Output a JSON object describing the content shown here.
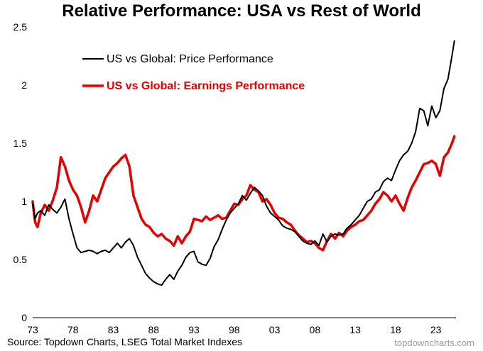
{
  "chart_data": {
    "type": "line",
    "title": "Relative Performance: USA vs Rest of World",
    "xlabel": "",
    "ylabel": "",
    "xlim": [
      1973,
      2025.5
    ],
    "ylim": [
      0,
      2.5
    ],
    "x_ticks": [
      1973,
      1978,
      1983,
      1988,
      1993,
      1998,
      2003,
      2008,
      2013,
      2018,
      2023
    ],
    "x_tick_labels": [
      "73",
      "78",
      "83",
      "88",
      "93",
      "98",
      "03",
      "08",
      "13",
      "18",
      "23"
    ],
    "y_ticks": [
      0,
      0.5,
      1,
      1.5,
      2,
      2.5
    ],
    "y_tick_labels": [
      "0",
      "0.5",
      "1",
      "1.5",
      "2",
      "2.5"
    ],
    "grid": false,
    "legend_position": "top-left",
    "series": [
      {
        "name": "US vs Global: Price Performance",
        "color": "#000000",
        "x": [
          1973,
          1973.3,
          1973.6,
          1974,
          1974.5,
          1975,
          1975.5,
          1976,
          1976.5,
          1977,
          1977.5,
          1978,
          1978.5,
          1979,
          1979.5,
          1980,
          1980.5,
          1981,
          1981.5,
          1982,
          1982.5,
          1983,
          1983.5,
          1984,
          1984.5,
          1985,
          1985.5,
          1986,
          1986.5,
          1987,
          1987.5,
          1988,
          1988.5,
          1989,
          1989.5,
          1990,
          1990.5,
          1991,
          1991.5,
          1992,
          1992.5,
          1993,
          1993.5,
          1994,
          1994.5,
          1995,
          1995.5,
          1996,
          1996.5,
          1997,
          1997.5,
          1998,
          1998.5,
          1999,
          1999.5,
          2000,
          2000.5,
          2001,
          2001.5,
          2002,
          2002.5,
          2003,
          2003.5,
          2004,
          2004.5,
          2005,
          2005.5,
          2006,
          2006.5,
          2007,
          2007.5,
          2008,
          2008.5,
          2009,
          2009.5,
          2010,
          2010.5,
          2011,
          2011.5,
          2012,
          2012.5,
          2013,
          2013.5,
          2014,
          2014.5,
          2015,
          2015.5,
          2016,
          2016.5,
          2017,
          2017.5,
          2018,
          2018.5,
          2019,
          2019.5,
          2020,
          2020.5,
          2021,
          2021.5,
          2022,
          2022.5,
          2023,
          2023.5,
          2024,
          2024.5,
          2025,
          2025.3
        ],
        "y": [
          0.98,
          0.85,
          0.9,
          0.92,
          0.88,
          0.97,
          0.93,
          0.9,
          0.95,
          1.02,
          0.85,
          0.72,
          0.6,
          0.56,
          0.57,
          0.58,
          0.57,
          0.55,
          0.57,
          0.58,
          0.56,
          0.6,
          0.64,
          0.6,
          0.65,
          0.68,
          0.62,
          0.52,
          0.45,
          0.38,
          0.34,
          0.31,
          0.29,
          0.28,
          0.33,
          0.37,
          0.33,
          0.4,
          0.45,
          0.52,
          0.56,
          0.57,
          0.48,
          0.46,
          0.45,
          0.51,
          0.61,
          0.67,
          0.76,
          0.84,
          0.9,
          0.94,
          0.98,
          1.05,
          1.01,
          1.07,
          1.12,
          1.09,
          1.05,
          0.96,
          0.9,
          0.87,
          0.84,
          0.79,
          0.77,
          0.76,
          0.74,
          0.7,
          0.66,
          0.64,
          0.63,
          0.66,
          0.62,
          0.72,
          0.65,
          0.7,
          0.72,
          0.71,
          0.72,
          0.77,
          0.8,
          0.84,
          0.88,
          0.94,
          1.0,
          1.02,
          1.08,
          1.1,
          1.17,
          1.2,
          1.18,
          1.27,
          1.35,
          1.4,
          1.43,
          1.5,
          1.6,
          1.8,
          1.78,
          1.65,
          1.82,
          1.72,
          1.78,
          1.97,
          2.05,
          2.25,
          2.38
        ]
      },
      {
        "name": "US vs Global: Earnings Performance",
        "color": "#e60000",
        "x": [
          1973,
          1973.3,
          1973.6,
          1974,
          1974.5,
          1975,
          1975.5,
          1976,
          1976.5,
          1977,
          1977.5,
          1978,
          1978.5,
          1979,
          1979.5,
          1980,
          1980.5,
          1981,
          1981.5,
          1982,
          1982.5,
          1983,
          1983.5,
          1984,
          1984.5,
          1985,
          1985.5,
          1986,
          1986.5,
          1987,
          1987.5,
          1988,
          1988.5,
          1989,
          1989.5,
          1990,
          1990.5,
          1991,
          1991.5,
          1992,
          1992.5,
          1993,
          1993.5,
          1994,
          1994.5,
          1995,
          1995.5,
          1996,
          1996.5,
          1997,
          1997.5,
          1998,
          1998.5,
          1999,
          1999.5,
          2000,
          2000.5,
          2001,
          2001.5,
          2002,
          2002.5,
          2003,
          2003.5,
          2004,
          2004.5,
          2005,
          2005.5,
          2006,
          2006.5,
          2007,
          2007.5,
          2008,
          2008.5,
          2009,
          2009.5,
          2010,
          2010.5,
          2011,
          2011.5,
          2012,
          2012.5,
          2013,
          2013.5,
          2014,
          2014.5,
          2015,
          2015.5,
          2016,
          2016.5,
          2017,
          2017.5,
          2018,
          2018.5,
          2019,
          2019.5,
          2020,
          2020.5,
          2021,
          2021.5,
          2022,
          2022.5,
          2023,
          2023.5,
          2024,
          2024.5,
          2025,
          2025.3
        ],
        "y": [
          1.0,
          0.82,
          0.78,
          0.9,
          0.97,
          0.92,
          1.01,
          1.12,
          1.38,
          1.3,
          1.18,
          1.1,
          1.05,
          0.95,
          0.82,
          0.92,
          1.05,
          1.0,
          1.1,
          1.2,
          1.25,
          1.3,
          1.33,
          1.37,
          1.4,
          1.3,
          1.05,
          0.95,
          0.85,
          0.8,
          0.78,
          0.73,
          0.7,
          0.72,
          0.68,
          0.66,
          0.62,
          0.7,
          0.64,
          0.7,
          0.74,
          0.85,
          0.84,
          0.83,
          0.87,
          0.84,
          0.86,
          0.88,
          0.85,
          0.86,
          0.92,
          0.98,
          0.97,
          1.02,
          1.05,
          1.14,
          1.1,
          1.08,
          1.0,
          1.02,
          0.97,
          0.9,
          0.86,
          0.85,
          0.82,
          0.8,
          0.75,
          0.71,
          0.68,
          0.65,
          0.66,
          0.64,
          0.6,
          0.58,
          0.66,
          0.72,
          0.68,
          0.73,
          0.7,
          0.75,
          0.78,
          0.8,
          0.83,
          0.84,
          0.88,
          0.92,
          0.98,
          1.02,
          1.08,
          1.05,
          1.0,
          1.05,
          0.98,
          0.92,
          1.03,
          1.12,
          1.18,
          1.25,
          1.32,
          1.33,
          1.35,
          1.32,
          1.22,
          1.38,
          1.42,
          1.5,
          1.56
        ]
      }
    ]
  },
  "source_note": "Source: Topdown Charts, LSEG Total Market Indexes",
  "watermark": "topdowncharts.com"
}
